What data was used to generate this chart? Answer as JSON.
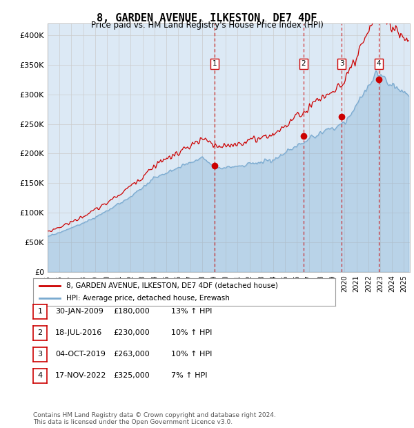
{
  "title": "8, GARDEN AVENUE, ILKESTON, DE7 4DF",
  "subtitle": "Price paid vs. HM Land Registry's House Price Index (HPI)",
  "ylabel_ticks": [
    "£0",
    "£50K",
    "£100K",
    "£150K",
    "£200K",
    "£250K",
    "£300K",
    "£350K",
    "£400K"
  ],
  "ytick_values": [
    0,
    50000,
    100000,
    150000,
    200000,
    250000,
    300000,
    350000,
    400000
  ],
  "ylim": [
    0,
    420000
  ],
  "xlim_start": 1995.0,
  "xlim_end": 2025.5,
  "sale_dates": [
    2009.08,
    2016.54,
    2019.75,
    2022.88
  ],
  "sale_prices": [
    180000,
    230000,
    263000,
    325000
  ],
  "sale_labels": [
    "1",
    "2",
    "3",
    "4"
  ],
  "legend_line1": "8, GARDEN AVENUE, ILKESTON, DE7 4DF (detached house)",
  "legend_line2": "HPI: Average price, detached house, Erewash",
  "table_rows": [
    [
      "1",
      "30-JAN-2009",
      "£180,000",
      "13% ↑ HPI"
    ],
    [
      "2",
      "18-JUL-2016",
      "£230,000",
      "10% ↑ HPI"
    ],
    [
      "3",
      "04-OCT-2019",
      "£263,000",
      "10% ↑ HPI"
    ],
    [
      "4",
      "17-NOV-2022",
      "£325,000",
      "7% ↑ HPI"
    ]
  ],
  "footnote1": "Contains HM Land Registry data © Crown copyright and database right 2024.",
  "footnote2": "This data is licensed under the Open Government Licence v3.0.",
  "hpi_color": "#7aaad0",
  "price_color": "#cc0000",
  "bg_color": "#dce9f5",
  "plot_bg": "#ffffff",
  "grid_color": "#cccccc",
  "dashed_line_color": "#cc0000"
}
